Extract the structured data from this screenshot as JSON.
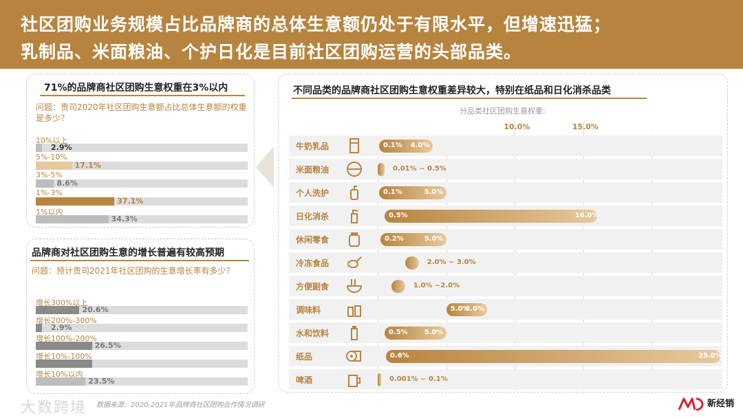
{
  "header": {
    "line1": "社区团购业务规模占比品牌商的总体生意额仍处于有限水平，但增速迅猛；",
    "line2": "乳制品、米面粮油、个护日化是目前社区团购运营的头部品类。"
  },
  "colors": {
    "brand": "#b7843f",
    "bar_light": "#e7c99d",
    "grey_dark": "#8a8a8a",
    "grey_light": "#bdbdbd"
  },
  "chart_data": [
    {
      "type": "bar",
      "orientation": "horizontal",
      "title": "71%的品牌商社区团购生意权重在3%以内",
      "question": "问题：贵司2020年社区团购生意额占比总体生意额的权重是多少？",
      "categories": [
        "10%以上",
        "5%-10%",
        "3%-5%",
        "1%-3%",
        "1%以内"
      ],
      "values": [
        2.9,
        17.1,
        8.6,
        37.1,
        34.3
      ],
      "labels": [
        "2.9%",
        "17.1%",
        "8.6%",
        "37.1%",
        "34.3%"
      ],
      "unit": "%",
      "xlim": [
        0,
        100
      ]
    },
    {
      "type": "bar",
      "orientation": "horizontal",
      "title": "品牌商对社区团购生意的增长普遍有较高预期",
      "question": "问题：预计贵司2021年社区团购的生意增长率有多少？",
      "categories": [
        "增长300%以上",
        "增长200%-300%",
        "增长100%-200%",
        "增长10%-100%",
        "增长10%以内"
      ],
      "values": [
        20.6,
        2.9,
        26.5,
        26.5,
        23.5
      ],
      "labels": [
        "20.6%",
        "2.9%",
        "26.5%",
        "",
        "23.5%"
      ],
      "unit": "%",
      "xlim": [
        0,
        100
      ]
    },
    {
      "type": "bar",
      "orientation": "horizontal-range",
      "title": "不同品类的品牌商社区团购生意权重差异较大，特别在纸品和日化消杀品类",
      "axis_title": "分品类社区团购生意权重:",
      "ticks": [
        "10.0%",
        "15.0%"
      ],
      "xlim": [
        0,
        25
      ],
      "categories": [
        "牛奶乳品",
        "米面粮油",
        "个人洗护",
        "日化消杀",
        "休闲零食",
        "冷冻食品",
        "方便副食",
        "调味料",
        "水和饮料",
        "纸品",
        "啤酒"
      ],
      "icons": [
        "milk-icon",
        "rice-bowl-icon",
        "pump-bottle-icon",
        "spray-bottle-icon",
        "snack-jar-icon",
        "frozen-chicken-icon",
        "noodle-bowl-icon",
        "seasoning-bottles-icon",
        "water-bottle-icon",
        "tissue-roll-icon",
        "beer-mug-icon"
      ],
      "ranges": [
        [
          0.1,
          4.0
        ],
        [
          0.01,
          0.5
        ],
        [
          0.1,
          5.0
        ],
        [
          0.5,
          16.0
        ],
        [
          0.2,
          5.0
        ],
        [
          2.0,
          3.0
        ],
        [
          1.0,
          2.0
        ],
        [
          5.0,
          8.0
        ],
        [
          0.5,
          5.0
        ],
        [
          0.6,
          25.0
        ],
        [
          0.001,
          0.1
        ]
      ],
      "low_labels": [
        "0.1%",
        "",
        "0.1%",
        "0.5%",
        "0.2%",
        "",
        "",
        "5.0%",
        "0.5%",
        "0.6%",
        ""
      ],
      "high_labels": [
        "4.0%",
        "",
        "5.0%",
        "16.0%",
        "5.0%",
        "",
        "",
        "8.0%",
        "5.0%",
        "25.0%",
        ""
      ],
      "range_labels": [
        "",
        "0.01% ~ 0.5%",
        "",
        "",
        "",
        "2.0% ~ 3.0%",
        "1.0% ~2.0%",
        "",
        "",
        "",
        "0.001% ~ 0.1%"
      ]
    }
  ],
  "footer": {
    "source": "数据来源：2020-2021年品牌商社区团购合作情况调研",
    "watermark": "大数跨境",
    "logo_text": "新经销"
  }
}
